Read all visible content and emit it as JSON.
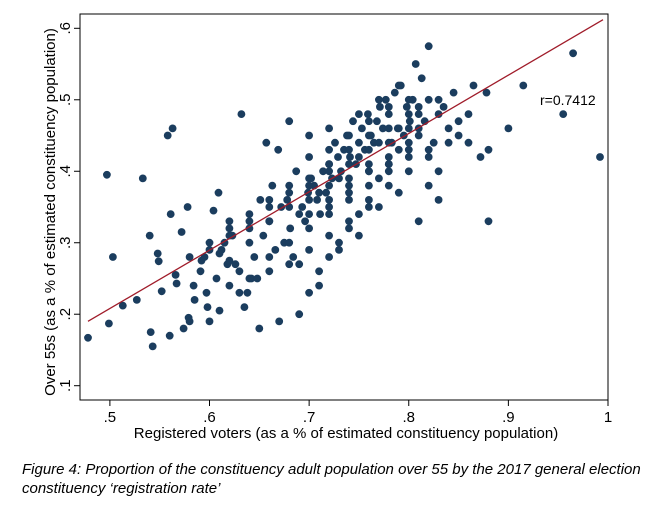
{
  "chart_data": {
    "type": "scatter",
    "xlabel": "Registered voters (as a % of estimated constituency population)",
    "ylabel": "Over 55s (as a % of estimated constituency population)",
    "xlim": [
      0.47,
      1.0
    ],
    "ylim": [
      0.08,
      0.62
    ],
    "xticks": [
      0.5,
      0.6,
      0.7,
      0.8,
      0.9,
      1.0
    ],
    "xtick_labels": [
      ".5",
      ".6",
      ".7",
      ".8",
      ".9",
      "1"
    ],
    "yticks": [
      0.1,
      0.2,
      0.3,
      0.4,
      0.5,
      0.6
    ],
    "ytick_labels": [
      ".1",
      ".2",
      ".3",
      ".4",
      ".5",
      ".6"
    ],
    "annotation": "r=0.7412",
    "fit_line": {
      "x": [
        0.478,
        0.995
      ],
      "y": [
        0.19,
        0.612
      ]
    },
    "colors": {
      "points": "#1b3d5e",
      "fit_line": "#a01c2a",
      "frame": "#000000"
    },
    "points": {
      "x": [
        0.478,
        0.497,
        0.499,
        0.503,
        0.513,
        0.527,
        0.533,
        0.54,
        0.541,
        0.543,
        0.548,
        0.549,
        0.552,
        0.558,
        0.561,
        0.563,
        0.566,
        0.567,
        0.572,
        0.574,
        0.578,
        0.579,
        0.584,
        0.585,
        0.591,
        0.592,
        0.595,
        0.597,
        0.598,
        0.604,
        0.607,
        0.609,
        0.61,
        0.612,
        0.615,
        0.618,
        0.62,
        0.623,
        0.626,
        0.63,
        0.632,
        0.635,
        0.638,
        0.64,
        0.642,
        0.645,
        0.648,
        0.651,
        0.654,
        0.657,
        0.66,
        0.663,
        0.666,
        0.669,
        0.672,
        0.675,
        0.678,
        0.681,
        0.684,
        0.687,
        0.69,
        0.693,
        0.696,
        0.699,
        0.702,
        0.705,
        0.708,
        0.711,
        0.714,
        0.717,
        0.72,
        0.723,
        0.726,
        0.729,
        0.732,
        0.735,
        0.738,
        0.741,
        0.744,
        0.747,
        0.75,
        0.753,
        0.756,
        0.759,
        0.762,
        0.765,
        0.768,
        0.771,
        0.774,
        0.777,
        0.78,
        0.783,
        0.786,
        0.789,
        0.792,
        0.795,
        0.798,
        0.801,
        0.804,
        0.807,
        0.81,
        0.813,
        0.816,
        0.82,
        0.825,
        0.83,
        0.835,
        0.84,
        0.845,
        0.85,
        0.86,
        0.865,
        0.872,
        0.878,
        0.88,
        0.9,
        0.915,
        0.955,
        0.965,
        0.992,
        0.56,
        0.58,
        0.6,
        0.61,
        0.62,
        0.63,
        0.65,
        0.67,
        0.69,
        0.7,
        0.71,
        0.72,
        0.73,
        0.74,
        0.75,
        0.76,
        0.77,
        0.78,
        0.79,
        0.8,
        0.81,
        0.82,
        0.83,
        0.62,
        0.64,
        0.66,
        0.68,
        0.7,
        0.72,
        0.74,
        0.76,
        0.78,
        0.8,
        0.82,
        0.6,
        0.62,
        0.64,
        0.66,
        0.68,
        0.7,
        0.72,
        0.74,
        0.76,
        0.78,
        0.8,
        0.66,
        0.68,
        0.7,
        0.72,
        0.74,
        0.76,
        0.78,
        0.8,
        0.82,
        0.84,
        0.7,
        0.72,
        0.74,
        0.76,
        0.78,
        0.8,
        0.82,
        0.64,
        0.66,
        0.68,
        0.7,
        0.72,
        0.74,
        0.76,
        0.78,
        0.8,
        0.58,
        0.6,
        0.62,
        0.64,
        0.66,
        0.68,
        0.7,
        0.72,
        0.74,
        0.76,
        0.71,
        0.73,
        0.75,
        0.77,
        0.79,
        0.81,
        0.72,
        0.74,
        0.76,
        0.78,
        0.8,
        0.7,
        0.72,
        0.74,
        0.76,
        0.78,
        0.68,
        0.7,
        0.72,
        0.75,
        0.77,
        0.79,
        0.81,
        0.83,
        0.85,
        0.86,
        0.88,
        0.69,
        0.71,
        0.73,
        0.75,
        0.77,
        0.79,
        0.81,
        0.83
      ],
      "y": [
        0.167,
        0.395,
        0.187,
        0.28,
        0.212,
        0.22,
        0.39,
        0.31,
        0.175,
        0.155,
        0.285,
        0.274,
        0.232,
        0.45,
        0.34,
        0.46,
        0.255,
        0.243,
        0.315,
        0.18,
        0.35,
        0.195,
        0.24,
        0.22,
        0.26,
        0.275,
        0.28,
        0.23,
        0.21,
        0.345,
        0.25,
        0.37,
        0.285,
        0.29,
        0.3,
        0.27,
        0.275,
        0.31,
        0.27,
        0.26,
        0.48,
        0.21,
        0.23,
        0.32,
        0.25,
        0.28,
        0.25,
        0.36,
        0.31,
        0.44,
        0.33,
        0.38,
        0.29,
        0.43,
        0.35,
        0.3,
        0.36,
        0.32,
        0.28,
        0.4,
        0.34,
        0.35,
        0.33,
        0.37,
        0.39,
        0.38,
        0.36,
        0.34,
        0.4,
        0.37,
        0.41,
        0.39,
        0.44,
        0.42,
        0.4,
        0.43,
        0.45,
        0.42,
        0.47,
        0.41,
        0.44,
        0.46,
        0.43,
        0.48,
        0.45,
        0.44,
        0.47,
        0.49,
        0.46,
        0.5,
        0.48,
        0.44,
        0.51,
        0.46,
        0.52,
        0.45,
        0.49,
        0.47,
        0.5,
        0.55,
        0.46,
        0.53,
        0.47,
        0.575,
        0.44,
        0.48,
        0.49,
        0.46,
        0.51,
        0.45,
        0.48,
        0.52,
        0.42,
        0.51,
        0.33,
        0.46,
        0.52,
        0.48,
        0.565,
        0.42,
        0.17,
        0.19,
        0.19,
        0.205,
        0.31,
        0.23,
        0.18,
        0.19,
        0.2,
        0.23,
        0.26,
        0.28,
        0.3,
        0.32,
        0.34,
        0.36,
        0.39,
        0.41,
        0.43,
        0.44,
        0.45,
        0.38,
        0.4,
        0.24,
        0.25,
        0.26,
        0.27,
        0.29,
        0.31,
        0.33,
        0.35,
        0.38,
        0.4,
        0.42,
        0.3,
        0.33,
        0.34,
        0.36,
        0.38,
        0.39,
        0.41,
        0.43,
        0.45,
        0.46,
        0.48,
        0.28,
        0.3,
        0.32,
        0.34,
        0.36,
        0.38,
        0.4,
        0.42,
        0.43,
        0.44,
        0.42,
        0.43,
        0.45,
        0.47,
        0.49,
        0.5,
        0.5,
        0.33,
        0.35,
        0.37,
        0.38,
        0.4,
        0.41,
        0.43,
        0.44,
        0.46,
        0.28,
        0.29,
        0.32,
        0.3,
        0.33,
        0.35,
        0.36,
        0.38,
        0.39,
        0.41,
        0.37,
        0.39,
        0.42,
        0.44,
        0.46,
        0.48,
        0.35,
        0.37,
        0.4,
        0.41,
        0.43,
        0.34,
        0.36,
        0.38,
        0.4,
        0.42,
        0.47,
        0.45,
        0.46,
        0.48,
        0.5,
        0.52,
        0.49,
        0.5,
        0.47,
        0.44,
        0.43,
        0.27,
        0.24,
        0.29,
        0.31,
        0.35,
        0.37,
        0.33,
        0.36
      ]
    }
  },
  "caption": "Figure 4: Proportion of the constituency adult population over 55 by the 2017 general election constituency ‘registration rate’"
}
